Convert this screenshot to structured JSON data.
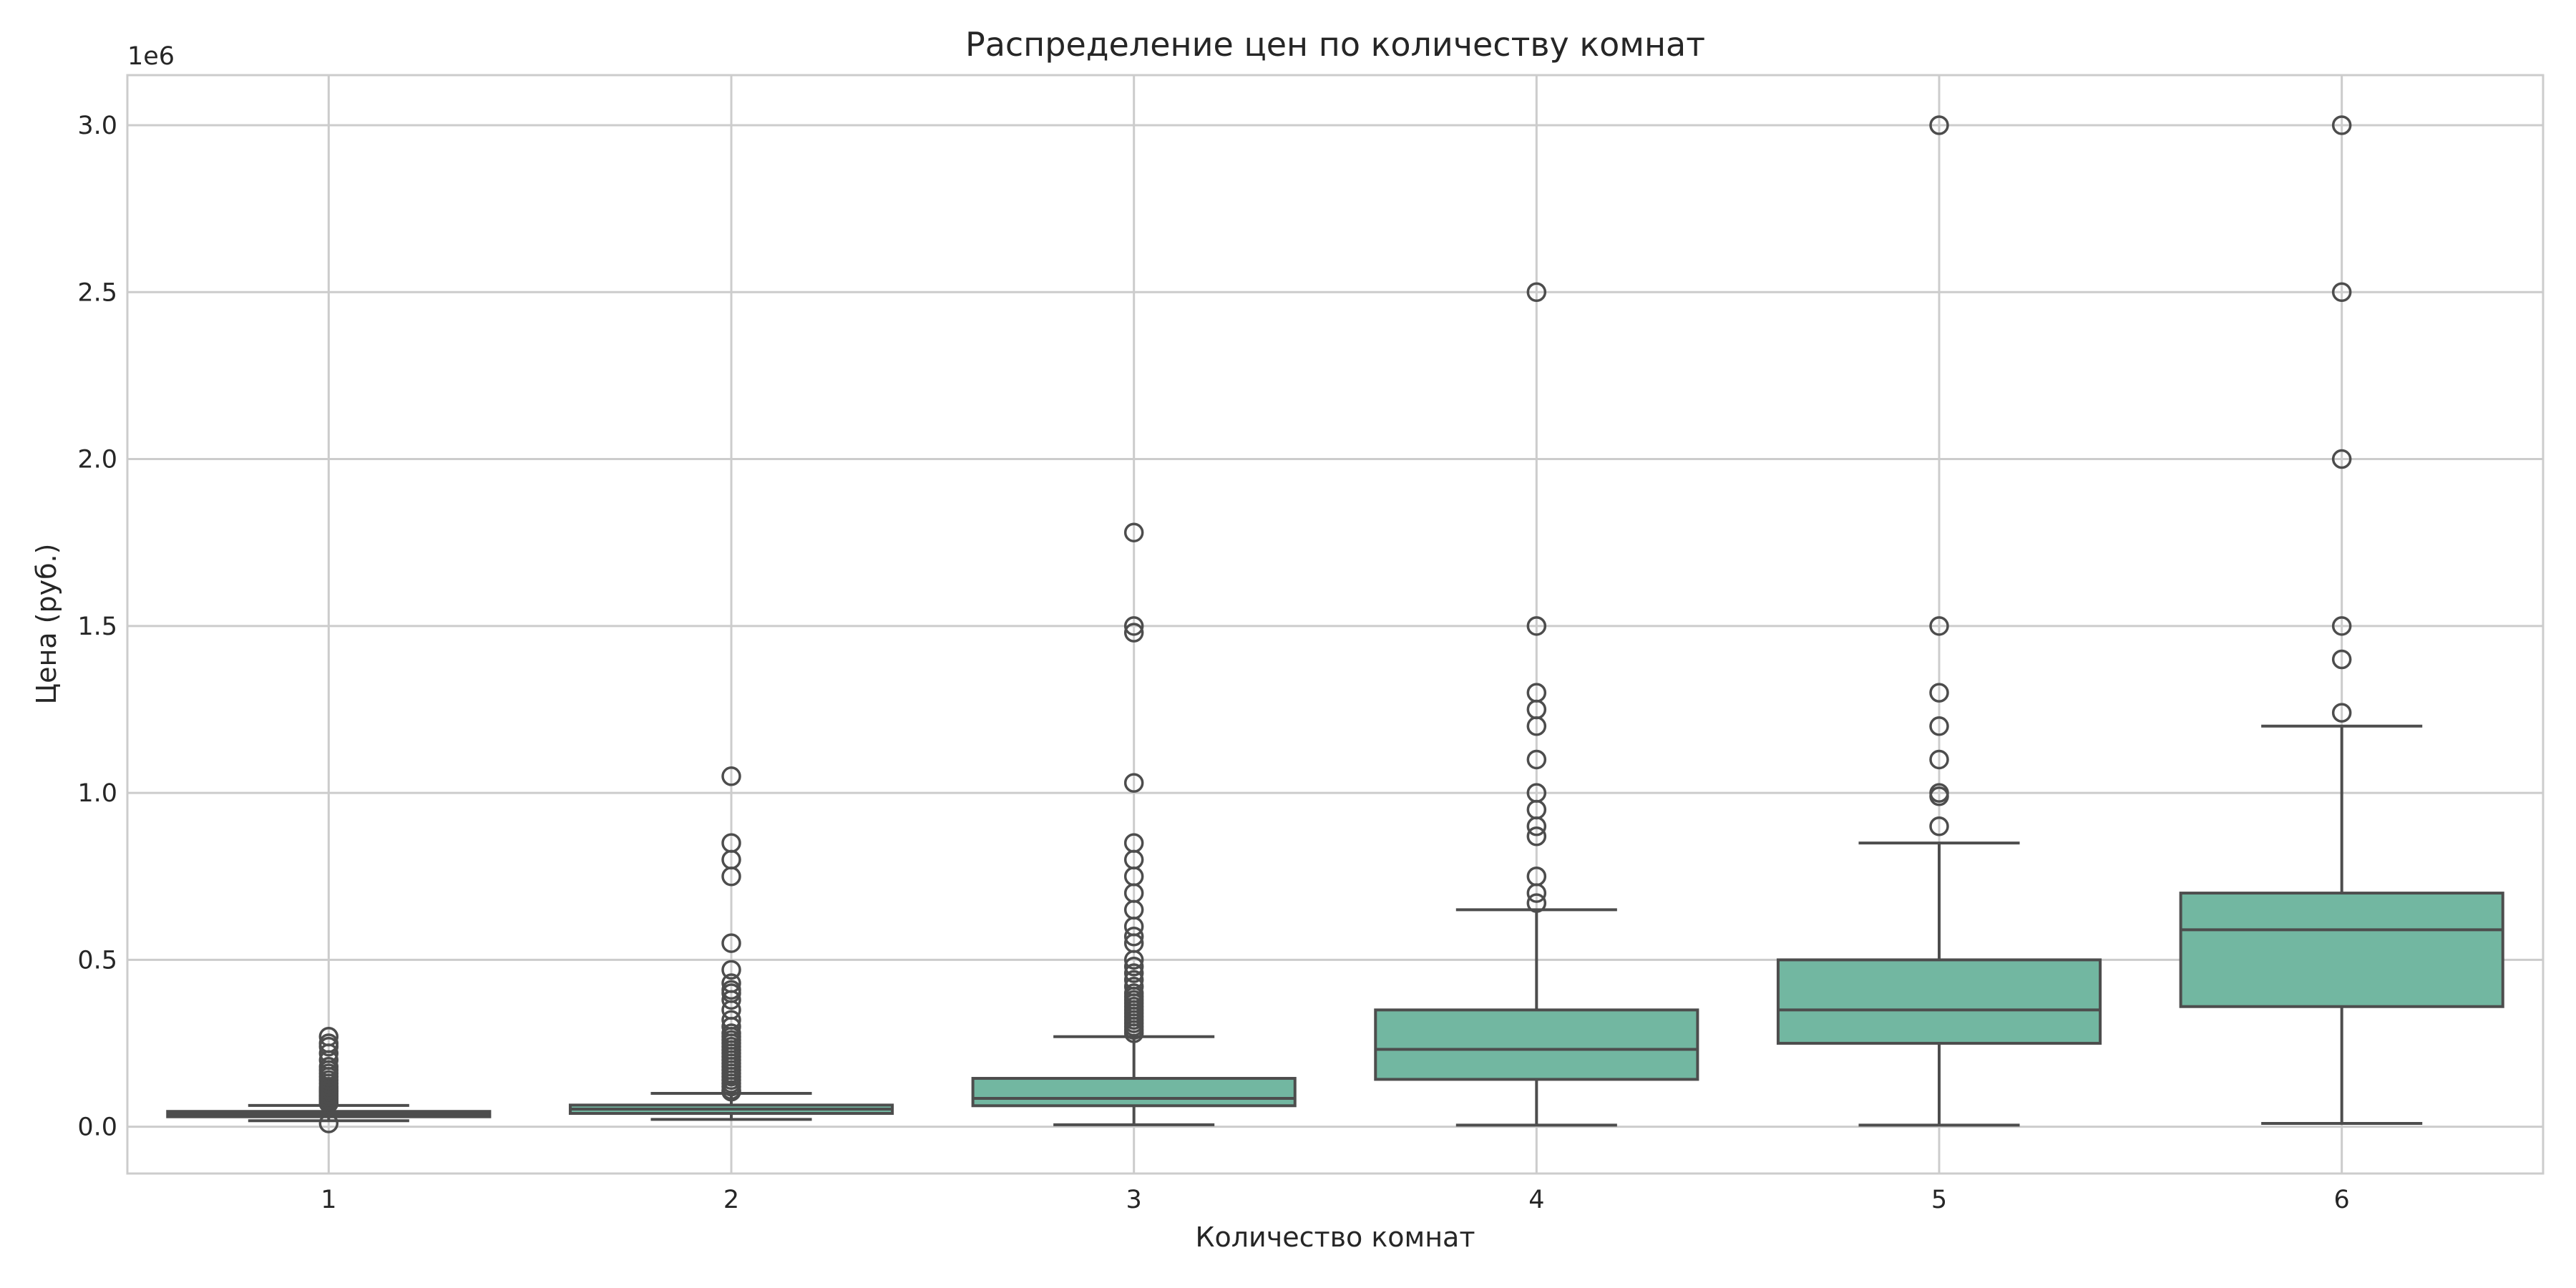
{
  "chart_data": {
    "type": "box",
    "title": "Распределение цен по количеству комнат",
    "xlabel": "Количество комнат",
    "ylabel": "Цена (руб.)",
    "y_offset_label": "1e6",
    "ylim": [
      -0.14,
      3.15
    ],
    "ylim_unit": "millions of rubles (axis scaled by 1e6)",
    "yticks": [
      0.0,
      0.5,
      1.0,
      1.5,
      2.0,
      2.5,
      3.0
    ],
    "ytick_labels": [
      "0.0",
      "0.5",
      "1.0",
      "1.5",
      "2.0",
      "2.5",
      "3.0"
    ],
    "categories": [
      "1",
      "2",
      "3",
      "4",
      "5",
      "6"
    ],
    "grid": true,
    "colors": {
      "box_fill": "#72b7a1",
      "box_edge": "#4d4d4d",
      "grid": "#cccccc",
      "frame": "#cccccc"
    },
    "boxes": [
      {
        "category": "1",
        "whisker_low": 0.018,
        "q1": 0.03,
        "median": 0.038,
        "q3": 0.046,
        "whisker_high": 0.064,
        "outliers": [
          0.01,
          0.07,
          0.075,
          0.08,
          0.085,
          0.09,
          0.095,
          0.1,
          0.105,
          0.11,
          0.115,
          0.12,
          0.13,
          0.14,
          0.15,
          0.16,
          0.17,
          0.18,
          0.2,
          0.22,
          0.24,
          0.25,
          0.27
        ]
      },
      {
        "category": "2",
        "whisker_low": 0.022,
        "q1": 0.04,
        "median": 0.053,
        "q3": 0.065,
        "whisker_high": 0.1,
        "outliers": [
          0.105,
          0.11,
          0.12,
          0.13,
          0.14,
          0.15,
          0.16,
          0.17,
          0.18,
          0.19,
          0.2,
          0.21,
          0.22,
          0.23,
          0.24,
          0.25,
          0.26,
          0.27,
          0.28,
          0.3,
          0.32,
          0.35,
          0.38,
          0.4,
          0.41,
          0.43,
          0.47,
          0.55,
          0.75,
          0.8,
          0.85,
          1.05
        ]
      },
      {
        "category": "3",
        "whisker_low": 0.006,
        "q1": 0.063,
        "median": 0.085,
        "q3": 0.145,
        "whisker_high": 0.27,
        "outliers": [
          0.28,
          0.29,
          0.3,
          0.31,
          0.32,
          0.33,
          0.34,
          0.35,
          0.36,
          0.37,
          0.38,
          0.39,
          0.4,
          0.42,
          0.44,
          0.46,
          0.48,
          0.5,
          0.55,
          0.57,
          0.6,
          0.65,
          0.7,
          0.75,
          0.8,
          0.85,
          1.03,
          1.48,
          1.5,
          1.78
        ]
      },
      {
        "category": "4",
        "whisker_low": 0.005,
        "q1": 0.142,
        "median": 0.232,
        "q3": 0.35,
        "whisker_high": 0.65,
        "outliers": [
          0.67,
          0.7,
          0.75,
          0.87,
          0.9,
          0.95,
          1.0,
          1.1,
          1.2,
          1.25,
          1.3,
          1.5,
          2.5
        ]
      },
      {
        "category": "5",
        "whisker_low": 0.005,
        "q1": 0.25,
        "median": 0.35,
        "q3": 0.5,
        "whisker_high": 0.85,
        "outliers": [
          0.9,
          0.99,
          1.0,
          1.1,
          1.2,
          1.3,
          1.5,
          3.0
        ]
      },
      {
        "category": "6",
        "whisker_low": 0.01,
        "q1": 0.36,
        "median": 0.59,
        "q3": 0.7,
        "whisker_high": 1.2,
        "outliers": [
          1.24,
          1.4,
          1.5,
          2.0,
          2.5,
          3.0
        ]
      }
    ]
  }
}
